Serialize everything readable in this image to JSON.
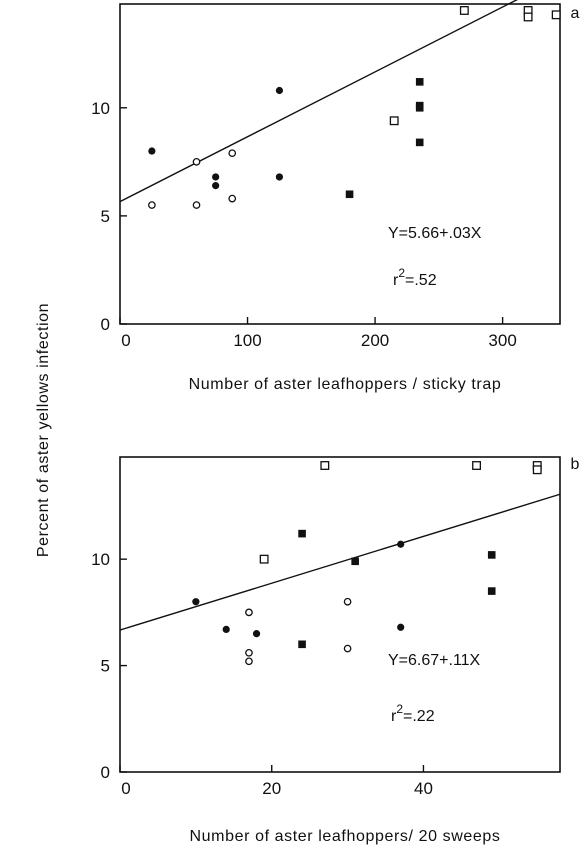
{
  "figure": {
    "ylabel": "Percent of aster yellows infection"
  },
  "chart_data": [
    {
      "type": "scatter",
      "panel_label": "a",
      "xlabel": "Number of aster leafhoppers / sticky trap",
      "xlim": [
        0,
        345
      ],
      "ylim": [
        0,
        14.8
      ],
      "xticks": [
        "0",
        "100",
        "200",
        "300"
      ],
      "yticks": [
        "0",
        "5",
        "10"
      ],
      "xtick_values": [
        0,
        100,
        200,
        300
      ],
      "ytick_values": [
        0,
        5,
        10
      ],
      "equation": "Y=5.66+.03X",
      "r2_base": "r",
      "r2_sup": "2",
      "r2_value": "=.52",
      "fit": {
        "intercept": 5.66,
        "slope": 0.03
      },
      "series": [
        {
          "marker": "filled-circle",
          "points": [
            [
              25,
              8.0
            ],
            [
              75,
              6.8
            ],
            [
              75,
              6.4
            ],
            [
              125,
              10.8
            ],
            [
              125,
              6.8
            ]
          ]
        },
        {
          "marker": "open-circle",
          "points": [
            [
              25,
              5.5
            ],
            [
              60,
              7.5
            ],
            [
              60,
              5.5
            ],
            [
              88,
              7.9
            ],
            [
              88,
              5.8
            ]
          ]
        },
        {
          "marker": "filled-square",
          "points": [
            [
              180,
              6.0
            ],
            [
              235,
              11.2
            ],
            [
              235,
              10.1
            ],
            [
              235,
              10.0
            ],
            [
              235,
              8.4
            ]
          ]
        },
        {
          "marker": "open-square",
          "points": [
            [
              215,
              9.4
            ],
            [
              270,
              14.5
            ],
            [
              320,
              14.5
            ],
            [
              320,
              14.2
            ],
            [
              342,
              14.3
            ]
          ]
        }
      ]
    },
    {
      "type": "scatter",
      "panel_label": "b",
      "xlabel": "Number of aster leafhoppers/ 20 sweeps",
      "xlim": [
        0,
        58
      ],
      "ylim": [
        0,
        14.8
      ],
      "xticks": [
        "0",
        "20",
        "40"
      ],
      "yticks": [
        "0",
        "5",
        "10"
      ],
      "xtick_values": [
        0,
        20,
        40
      ],
      "ytick_values": [
        0,
        5,
        10
      ],
      "equation": "Y=6.67+.11X",
      "r2_base": "r",
      "r2_sup": "2",
      "r2_value": "=.22",
      "fit": {
        "intercept": 6.67,
        "slope": 0.11
      },
      "series": [
        {
          "marker": "filled-circle",
          "points": [
            [
              10,
              8.0
            ],
            [
              14,
              6.7
            ],
            [
              18,
              6.5
            ],
            [
              37,
              10.7
            ],
            [
              37,
              6.8
            ]
          ]
        },
        {
          "marker": "open-circle",
          "points": [
            [
              17,
              7.5
            ],
            [
              17,
              5.6
            ],
            [
              17,
              5.2
            ],
            [
              30,
              8.0
            ],
            [
              30,
              5.8
            ]
          ]
        },
        {
          "marker": "filled-square",
          "points": [
            [
              24,
              11.2
            ],
            [
              24,
              6.0
            ],
            [
              31,
              9.9
            ],
            [
              49,
              10.2
            ],
            [
              49,
              8.5
            ]
          ]
        },
        {
          "marker": "open-square",
          "points": [
            [
              19,
              10.0
            ],
            [
              27,
              14.4
            ],
            [
              47,
              14.4
            ],
            [
              55,
              14.4
            ],
            [
              55,
              14.2
            ]
          ]
        }
      ]
    }
  ]
}
